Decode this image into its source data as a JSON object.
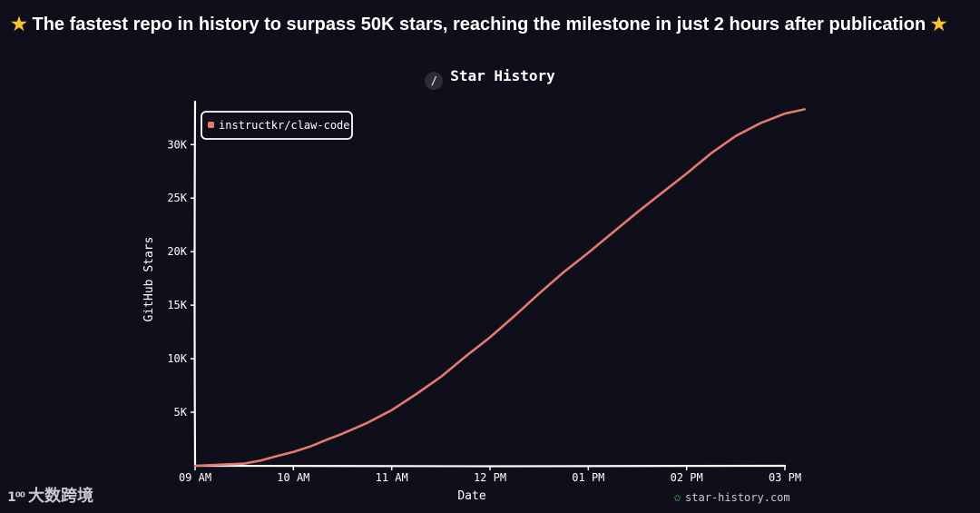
{
  "headline": {
    "text": "The fastest repo in history to surpass 50K stars, reaching the milestone in just 2 hours after publication",
    "icon": "star-emoji"
  },
  "title_icon": "pencil-icon",
  "watermarks": {
    "left": "大数跨境",
    "left_badge": "1⁰⁰",
    "right": "star-history.com",
    "right_icon": "star-logo-icon"
  },
  "colors": {
    "background": "#0e0f1a",
    "series": "#e5786f",
    "axis": "#ffffff",
    "logo_green": "#3ecf5b"
  },
  "chart_data": {
    "type": "line",
    "title": "Star History",
    "xlabel": "Date",
    "ylabel": "GitHub Stars",
    "x_tick_labels": [
      "09 AM",
      "10 AM",
      "11 AM",
      "12 PM",
      "01 PM",
      "02 PM",
      "03 PM"
    ],
    "y_tick_labels": [
      "5K",
      "10K",
      "15K",
      "20K",
      "25K",
      "30K"
    ],
    "y_ticks": [
      5000,
      10000,
      15000,
      20000,
      25000,
      30000
    ],
    "ylim": [
      0,
      33500
    ],
    "xlim": [
      9.0,
      15.2
    ],
    "legend_position": "top-left",
    "grid": false,
    "series": [
      {
        "name": "instructkr/claw-code",
        "color": "#e5786f",
        "x_hours": [
          9.0,
          9.25,
          9.5,
          9.67,
          9.83,
          10.0,
          10.17,
          10.33,
          10.5,
          10.75,
          11.0,
          11.25,
          11.5,
          11.75,
          12.0,
          12.25,
          12.5,
          12.75,
          13.0,
          13.25,
          13.5,
          13.75,
          14.0,
          14.25,
          14.5,
          14.75,
          15.0,
          15.2
        ],
        "values": [
          0,
          100,
          200,
          500,
          900,
          1300,
          1800,
          2400,
          3000,
          4000,
          5200,
          6700,
          8300,
          10200,
          12000,
          14000,
          16100,
          18100,
          19900,
          21800,
          23700,
          25500,
          27300,
          29200,
          30800,
          32000,
          32900,
          33300
        ]
      }
    ]
  }
}
